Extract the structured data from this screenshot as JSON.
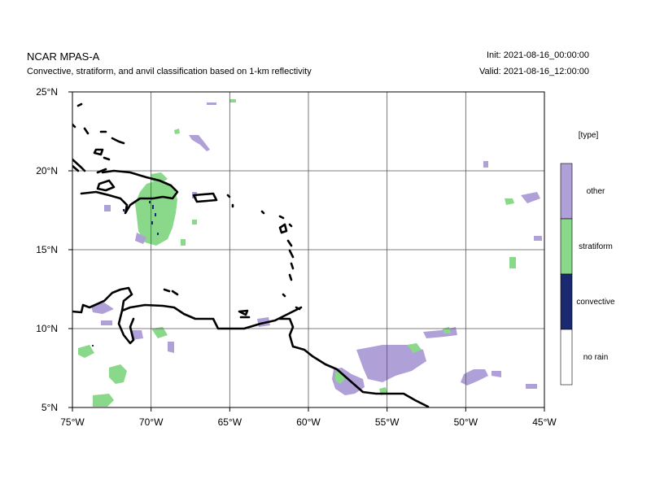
{
  "header": {
    "title": "NCAR MPAS-A",
    "subtitle": "Convective, stratiform, and anvil classification based on 1-km reflectivity",
    "init": "Init: 2021-08-16_00:00:00",
    "valid": "Valid: 2021-08-16_12:00:00"
  },
  "map": {
    "lon_range": [
      -75,
      -45
    ],
    "lat_range": [
      5,
      25
    ],
    "grid": true,
    "x_ticks": [
      {
        "value": -75,
        "label": "75°W"
      },
      {
        "value": -70,
        "label": "70°W"
      },
      {
        "value": -65,
        "label": "65°W"
      },
      {
        "value": -60,
        "label": "60°W"
      },
      {
        "value": -55,
        "label": "55°W"
      },
      {
        "value": -50,
        "label": "50°W"
      },
      {
        "value": -45,
        "label": "45°W"
      }
    ],
    "y_ticks": [
      {
        "value": 5,
        "label": "5°N"
      },
      {
        "value": 10,
        "label": "10°N"
      },
      {
        "value": 15,
        "label": "15°N"
      },
      {
        "value": 20,
        "label": "20°N"
      },
      {
        "value": 25,
        "label": "25°N"
      }
    ]
  },
  "legend": {
    "title": "[type]",
    "entries": [
      {
        "label": "other",
        "color": "#b0a0d8"
      },
      {
        "label": "stratiform",
        "color": "#8ad88a"
      },
      {
        "label": "convective",
        "color": "#1a2a70"
      },
      {
        "label": "no rain",
        "color": "#ffffff"
      }
    ]
  },
  "colors": {
    "other": "#b0a0d8",
    "stratiform": "#8ad88a",
    "convective": "#1a2a70",
    "coast": "#000000",
    "grid": "#555555"
  }
}
